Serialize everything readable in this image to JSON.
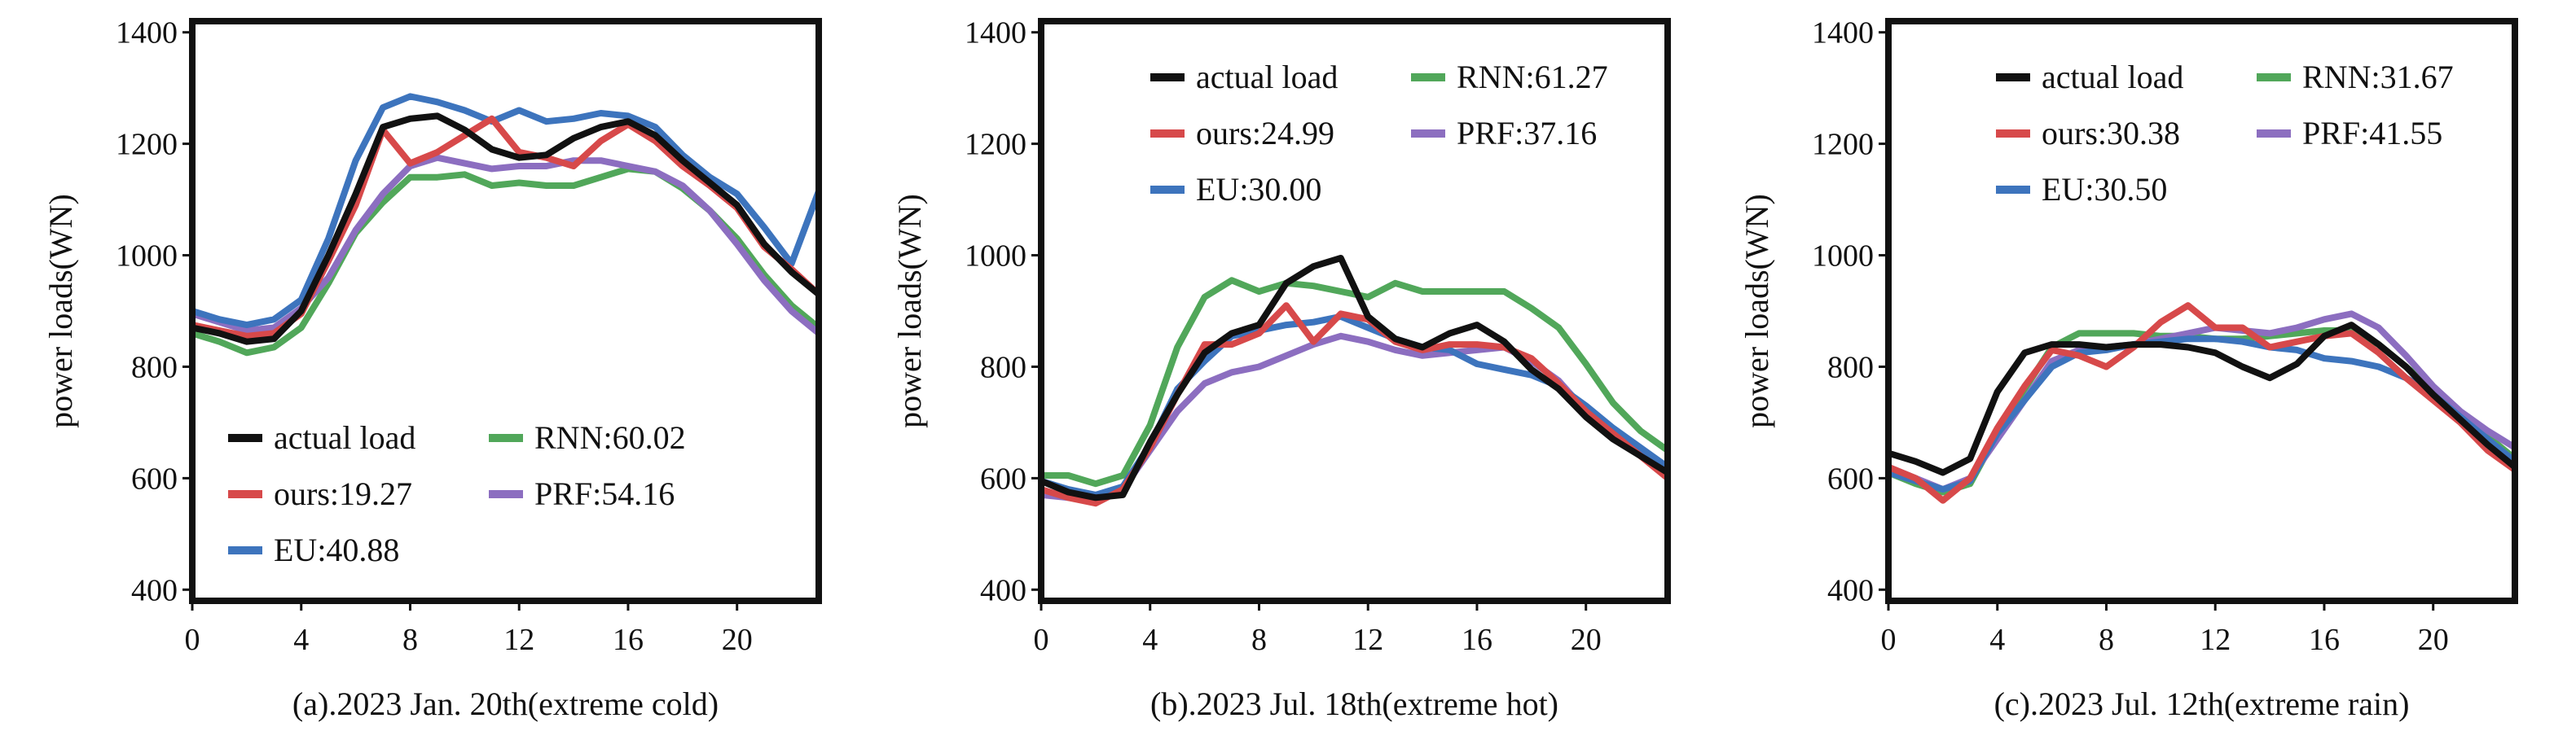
{
  "chart_data": [
    {
      "type": "line",
      "title": "",
      "xlabel": "(a).2023 Jan. 20th(extreme cold)",
      "ylabel": "power loads(WN)",
      "xlim": [
        0,
        23
      ],
      "ylim": [
        380,
        1420
      ],
      "xticks": [
        0,
        4,
        8,
        12,
        16,
        20
      ],
      "yticks": [
        400,
        600,
        800,
        1000,
        1200,
        1400
      ],
      "legend_position": "bottom-left",
      "x": [
        0,
        1,
        2,
        3,
        4,
        5,
        6,
        7,
        8,
        9,
        10,
        11,
        12,
        13,
        14,
        15,
        16,
        17,
        18,
        19,
        20,
        21,
        22,
        23
      ],
      "series": [
        {
          "name": "actual load",
          "color": "#111111",
          "values": [
            870,
            860,
            845,
            850,
            900,
            1000,
            1110,
            1230,
            1245,
            1250,
            1225,
            1190,
            1175,
            1180,
            1210,
            1230,
            1240,
            1215,
            1170,
            1130,
            1090,
            1020,
            970,
            930
          ]
        },
        {
          "name": "ours:19.27",
          "color": "#d7494a",
          "values": [
            875,
            865,
            855,
            860,
            895,
            990,
            1090,
            1225,
            1165,
            1185,
            1215,
            1245,
            1185,
            1175,
            1160,
            1205,
            1235,
            1205,
            1160,
            1125,
            1085,
            1015,
            975,
            930
          ]
        },
        {
          "name": "EU:40.88",
          "color": "#3d74bd",
          "values": [
            900,
            885,
            875,
            885,
            920,
            1030,
            1170,
            1265,
            1285,
            1275,
            1260,
            1240,
            1260,
            1240,
            1245,
            1255,
            1250,
            1230,
            1180,
            1140,
            1110,
            1050,
            985,
            1115
          ]
        },
        {
          "name": "RNN:60.02",
          "color": "#51a75a",
          "values": [
            860,
            845,
            825,
            835,
            870,
            950,
            1040,
            1095,
            1140,
            1140,
            1145,
            1125,
            1130,
            1125,
            1125,
            1140,
            1155,
            1150,
            1120,
            1080,
            1030,
            965,
            910,
            870
          ]
        },
        {
          "name": "PRF:54.16",
          "color": "#8c6ec0",
          "values": [
            895,
            880,
            865,
            870,
            905,
            960,
            1045,
            1110,
            1160,
            1175,
            1165,
            1155,
            1160,
            1160,
            1170,
            1170,
            1160,
            1150,
            1125,
            1080,
            1020,
            955,
            900,
            860
          ]
        }
      ]
    },
    {
      "type": "line",
      "title": "",
      "xlabel": "(b).2023 Jul. 18th(extreme hot)",
      "ylabel": "power loads(WN)",
      "xlim": [
        0,
        23
      ],
      "ylim": [
        380,
        1420
      ],
      "xticks": [
        0,
        4,
        8,
        12,
        16,
        20
      ],
      "yticks": [
        400,
        600,
        800,
        1000,
        1200,
        1400
      ],
      "legend_position": "top",
      "x": [
        0,
        1,
        2,
        3,
        4,
        5,
        6,
        7,
        8,
        9,
        10,
        11,
        12,
        13,
        14,
        15,
        16,
        17,
        18,
        19,
        20,
        21,
        22,
        23
      ],
      "series": [
        {
          "name": "actual load",
          "color": "#111111",
          "values": [
            595,
            575,
            565,
            570,
            665,
            750,
            825,
            860,
            875,
            950,
            980,
            995,
            890,
            850,
            835,
            860,
            875,
            845,
            795,
            760,
            710,
            670,
            640,
            610
          ]
        },
        {
          "name": "ours:24.99",
          "color": "#d7494a",
          "values": [
            580,
            565,
            555,
            580,
            655,
            750,
            840,
            840,
            860,
            910,
            845,
            895,
            885,
            845,
            830,
            840,
            840,
            835,
            815,
            770,
            720,
            680,
            640,
            600
          ]
        },
        {
          "name": "EU:30.00",
          "color": "#3d74bd",
          "values": [
            595,
            580,
            570,
            585,
            660,
            760,
            810,
            855,
            865,
            875,
            880,
            890,
            870,
            850,
            835,
            830,
            805,
            795,
            785,
            765,
            730,
            690,
            655,
            620
          ]
        },
        {
          "name": "RNN:61.27",
          "color": "#51a75a",
          "values": [
            605,
            605,
            590,
            605,
            695,
            835,
            925,
            955,
            935,
            950,
            945,
            935,
            925,
            950,
            935,
            935,
            935,
            935,
            905,
            870,
            805,
            735,
            685,
            650
          ]
        },
        {
          "name": "PRF:37.16",
          "color": "#8c6ec0",
          "values": [
            570,
            565,
            560,
            580,
            650,
            720,
            770,
            790,
            800,
            820,
            840,
            855,
            845,
            830,
            820,
            825,
            830,
            835,
            810,
            775,
            720,
            675,
            645,
            615
          ]
        }
      ]
    },
    {
      "type": "line",
      "title": "",
      "xlabel": "(c).2023 Jul. 12th(extreme rain)",
      "ylabel": "power loads(WN)",
      "xlim": [
        0,
        23
      ],
      "ylim": [
        380,
        1420
      ],
      "xticks": [
        0,
        4,
        8,
        12,
        16,
        20
      ],
      "yticks": [
        400,
        600,
        800,
        1000,
        1200,
        1400
      ],
      "legend_position": "top",
      "x": [
        0,
        1,
        2,
        3,
        4,
        5,
        6,
        7,
        8,
        9,
        10,
        11,
        12,
        13,
        14,
        15,
        16,
        17,
        18,
        19,
        20,
        21,
        22,
        23
      ],
      "series": [
        {
          "name": "actual load",
          "color": "#111111",
          "values": [
            645,
            630,
            610,
            635,
            755,
            825,
            840,
            840,
            835,
            840,
            840,
            835,
            825,
            800,
            780,
            805,
            855,
            875,
            840,
            800,
            750,
            705,
            660,
            620
          ]
        },
        {
          "name": "ours:30.38",
          "color": "#d7494a",
          "values": [
            620,
            600,
            560,
            600,
            690,
            765,
            830,
            820,
            800,
            835,
            880,
            910,
            870,
            870,
            835,
            845,
            855,
            860,
            825,
            780,
            740,
            700,
            650,
            615
          ]
        },
        {
          "name": "EU:30.50",
          "color": "#3d74bd",
          "values": [
            610,
            595,
            580,
            595,
            680,
            740,
            800,
            825,
            830,
            840,
            845,
            850,
            850,
            845,
            835,
            830,
            815,
            810,
            800,
            780,
            750,
            710,
            670,
            630
          ]
        },
        {
          "name": "RNN:31.67",
          "color": "#51a75a",
          "values": [
            610,
            590,
            575,
            590,
            680,
            760,
            835,
            860,
            860,
            860,
            855,
            855,
            850,
            850,
            855,
            860,
            865,
            865,
            840,
            800,
            760,
            715,
            675,
            635
          ]
        },
        {
          "name": "PRF:41.55",
          "color": "#8c6ec0",
          "values": [
            620,
            600,
            580,
            600,
            670,
            740,
            810,
            830,
            835,
            840,
            850,
            860,
            870,
            865,
            860,
            870,
            885,
            895,
            870,
            820,
            765,
            720,
            685,
            655
          ]
        }
      ]
    }
  ]
}
